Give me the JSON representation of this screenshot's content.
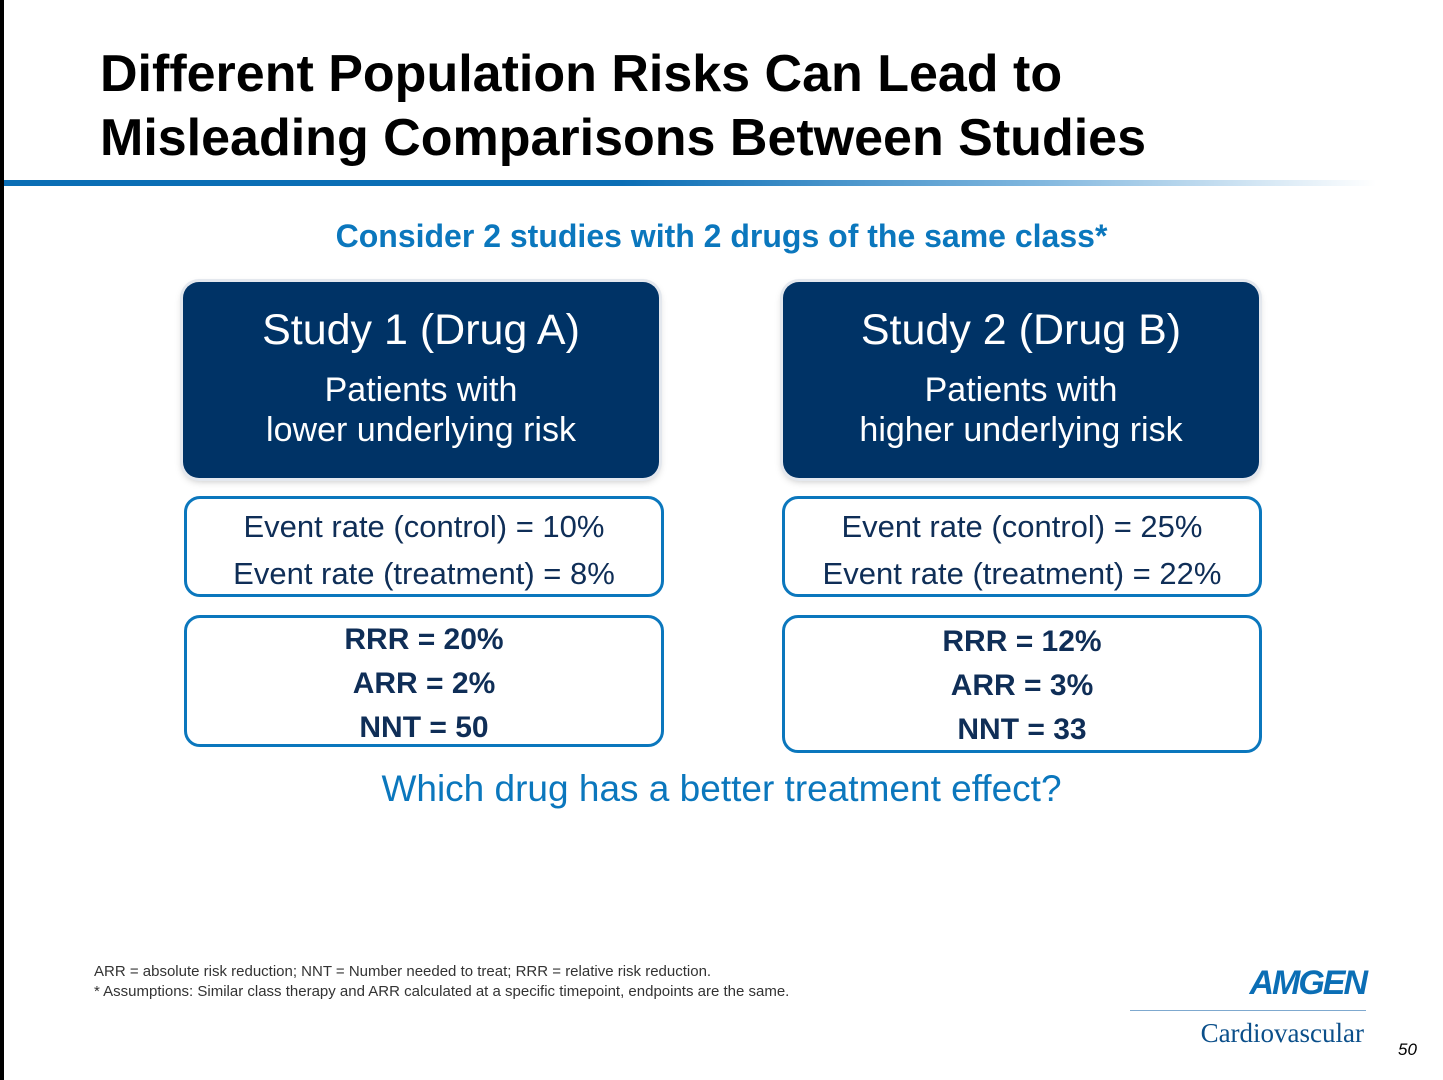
{
  "slide": {
    "title_lines": [
      "Different Population Risks Can Lead to",
      "Misleading Comparisons Between Studies"
    ],
    "subtitle": "Consider 2 studies with 2 drugs of the same class*",
    "studies": [
      {
        "title": "Study 1 (Drug A)",
        "desc_lines": [
          "Patients with",
          "lower underlying risk"
        ],
        "rates": [
          "Event rate (control) = 10%",
          "Event rate (treatment) = 8%"
        ],
        "metrics": [
          "RRR = 20%",
          "ARR = 2%",
          "NNT = 50"
        ]
      },
      {
        "title": "Study 2 (Drug B)",
        "desc_lines": [
          "Patients with",
          "higher underlying risk"
        ],
        "rates": [
          "Event rate (control) = 25%",
          "Event rate (treatment) = 22%"
        ],
        "metrics": [
          "RRR = 12%",
          "ARR = 3%",
          "NNT = 33"
        ]
      }
    ],
    "question": "Which drug has a better treatment effect?",
    "footnotes": [
      "ARR = absolute risk reduction; NNT = Number needed to treat; RRR = relative risk reduction.",
      "* Assumptions: Similar class therapy and ARR calculated at a specific timepoint, endpoints are the same."
    ],
    "logo": {
      "brand": "AMGEN",
      "division": "Cardiovascular"
    },
    "page_number": "50"
  },
  "colors": {
    "navy": "#003366",
    "accent_blue": "#0b77bd",
    "text_navy": "#0f2e57"
  }
}
